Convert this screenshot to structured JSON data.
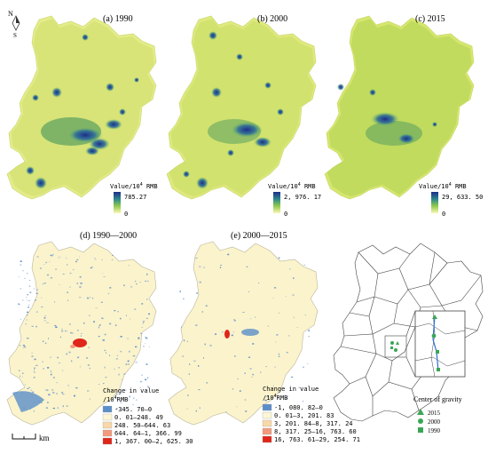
{
  "compass": {
    "letters": [
      "N",
      "S"
    ]
  },
  "panels": [
    {
      "id": "a",
      "title": "(a) 1990",
      "legend_label": "Value/10",
      "legend_sup": "4",
      "legend_unit": " RMB",
      "max": "785.27",
      "min": "0"
    },
    {
      "id": "b",
      "title": "(b) 2000",
      "legend_label": "Value/10",
      "legend_sup": "4",
      "legend_unit": " RMB",
      "max": "2, 976. 17",
      "min": "0"
    },
    {
      "id": "c",
      "title": "(c) 2015",
      "legend_label": "Value/10",
      "legend_sup": "4",
      "legend_unit": " RMB",
      "max": "29, 633. 50",
      "min": "0"
    },
    {
      "id": "d",
      "title": "(d) 1990—2000",
      "legend_title1": "Change in value",
      "legend_title2": "/10",
      "legend_sup": "4",
      "legend_unit": "RMB",
      "classes": [
        {
          "label": "-345. 70—0",
          "color": "#5b8ec9"
        },
        {
          "label": "0. 01—248. 49",
          "color": "#fbf6d4"
        },
        {
          "label": "248. 50—644. 63",
          "color": "#f8d8a8"
        },
        {
          "label": "644. 64—1, 366. 99",
          "color": "#f29b7c"
        },
        {
          "label": "1, 367. 00—2, 625. 30",
          "color": "#e0261a"
        }
      ]
    },
    {
      "id": "e",
      "title": "(e) 2000—2015",
      "legend_title1": "Change in value",
      "legend_title2": "/10",
      "legend_sup": "4",
      "legend_unit": "RMB",
      "classes": [
        {
          "label": "-1, 080. 82—0",
          "color": "#5b8ec9"
        },
        {
          "label": "0. 01—3, 201. 83",
          "color": "#fbf6d4"
        },
        {
          "label": "3, 201. 84—8, 317. 24",
          "color": "#f8d8a8"
        },
        {
          "label": "8, 317. 25—16, 763. 60",
          "color": "#f29b7c"
        },
        {
          "label": "16, 763. 61—29, 254. 71",
          "color": "#e0261a"
        }
      ]
    }
  ],
  "gravity_legend": {
    "title": "Center of gravity",
    "items": [
      {
        "label": "2015",
        "symbol": "triangle",
        "color": "#3aa655"
      },
      {
        "label": "2000",
        "symbol": "circle",
        "color": "#3aa655"
      },
      {
        "label": "1990",
        "symbol": "square",
        "color": "#3aa655"
      }
    ]
  },
  "scale_bar": {
    "unit": "km"
  },
  "colors": {
    "low": "#fbf7b4",
    "mid": "#b6d84a",
    "high": "#1c2e8a",
    "base": "#fbf3cc",
    "neg": "#5b8ec9",
    "pos": "#e0261a"
  }
}
